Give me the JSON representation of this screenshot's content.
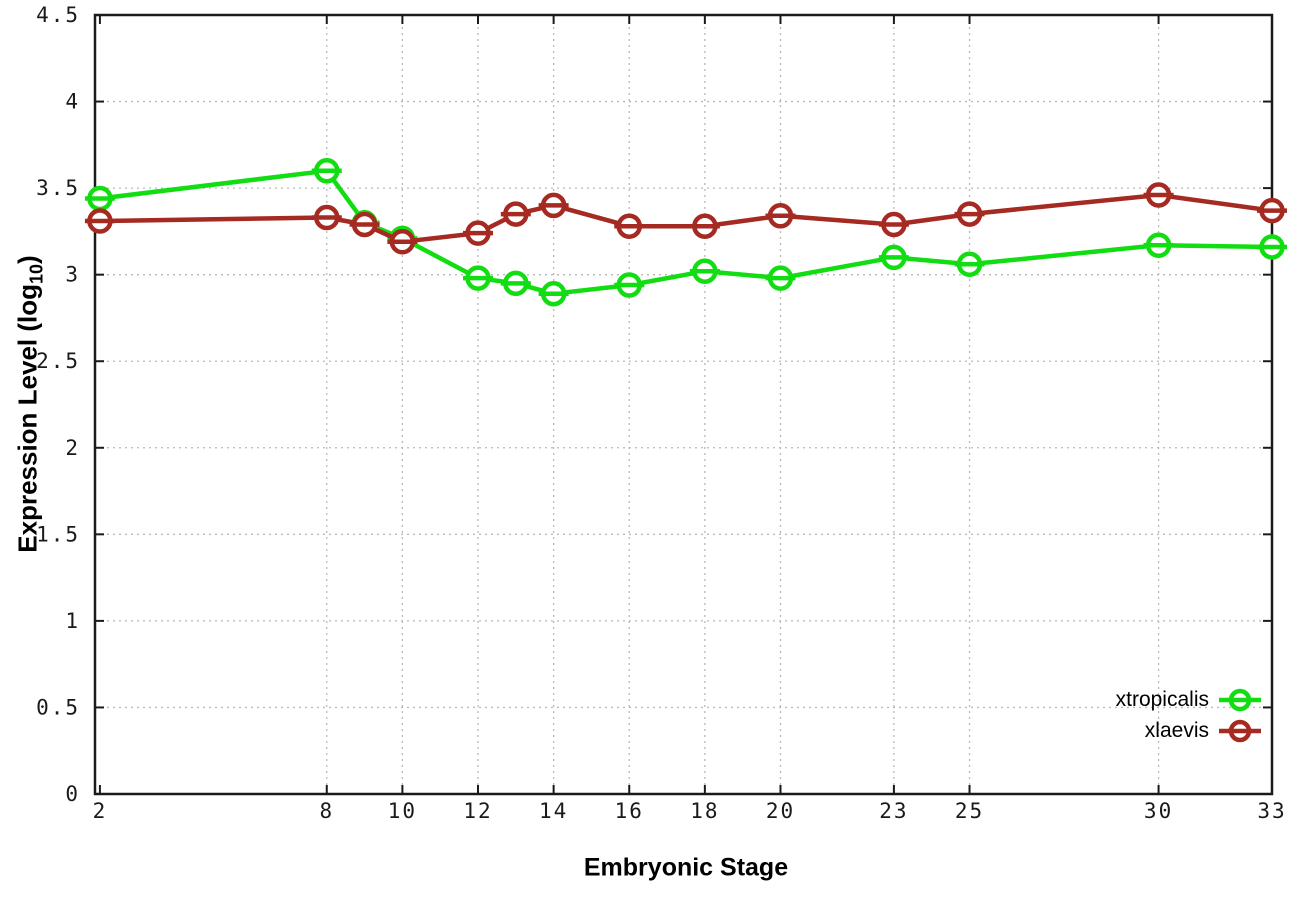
{
  "chart_data": {
    "type": "line",
    "title": "",
    "xlabel": "Embryonic Stage",
    "ylabel": "Expression Level (log10)",
    "ylabel_parts": {
      "main": "Expression Level (log",
      "sub": "10",
      "end": ")"
    },
    "x": [
      2,
      8,
      9,
      10,
      12,
      13,
      14,
      16,
      18,
      20,
      23,
      25,
      30,
      33
    ],
    "series": [
      {
        "name": "xtropicalis",
        "color": "#12dd12",
        "marker": "open-circle-with-dash",
        "values": [
          3.44,
          3.6,
          3.3,
          3.21,
          2.98,
          2.95,
          2.89,
          2.94,
          3.02,
          2.98,
          3.1,
          3.06,
          3.17,
          3.16
        ]
      },
      {
        "name": "xlaevis",
        "color": "#a52a21",
        "marker": "open-circle-with-dash",
        "values": [
          3.31,
          3.33,
          3.29,
          3.19,
          3.24,
          3.35,
          3.4,
          3.28,
          3.28,
          3.34,
          3.29,
          3.35,
          3.46,
          3.37
        ]
      }
    ],
    "xlim": [
      1.87,
      33
    ],
    "ylim": [
      0,
      4.5
    ],
    "xticks": [
      2,
      8,
      10,
      12,
      14,
      16,
      18,
      20,
      23,
      25,
      30,
      33
    ],
    "xtick_labels": [
      "2",
      "8",
      "10",
      "12",
      "14",
      "16",
      "18",
      "20",
      "23",
      "25",
      "30",
      "33"
    ],
    "yticks": [
      0,
      0.5,
      1,
      1.5,
      2,
      2.5,
      3,
      3.5,
      4,
      4.5
    ],
    "ytick_labels": [
      "0",
      "0.5",
      "1",
      "1.5",
      "2",
      "2.5",
      "3",
      "3.5",
      "4",
      "4.5"
    ],
    "grid": true,
    "legend_position": "bottom-right",
    "background_color": "#ffffff",
    "grid_color": "#b9b9b9",
    "axis_color": "#1a1a1a",
    "tick_label_color": "#1a1a1a"
  }
}
